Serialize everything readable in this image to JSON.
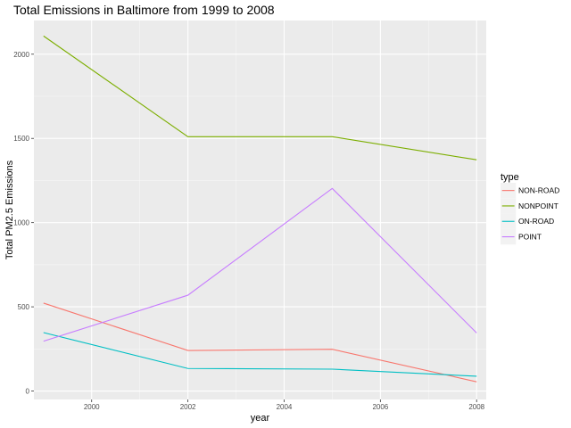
{
  "chart_data": {
    "type": "line",
    "title": "Total Emissions in Baltimore from 1999 to 2008",
    "xlabel": "year",
    "ylabel": "Total PM2.5 Emissions",
    "xlim": [
      1998.8,
      2008.2
    ],
    "ylim": [
      -50,
      2200
    ],
    "x_ticks": [
      2000,
      2002,
      2004,
      2006,
      2008
    ],
    "y_ticks": [
      0,
      500,
      1000,
      1500,
      2000
    ],
    "x_tick_labels": [
      "2000",
      "2002",
      "2004",
      "2006",
      "2008"
    ],
    "y_tick_labels": [
      "0",
      "500",
      "1000",
      "1500",
      "2000"
    ],
    "x": [
      1999,
      2002,
      2005,
      2008
    ],
    "grid": true,
    "legend_position": "right",
    "legend_title": "type",
    "series": [
      {
        "name": "NON-ROAD",
        "color": "#F8766D",
        "values": [
          522,
          241,
          248,
          55
        ]
      },
      {
        "name": "NONPOINT",
        "color": "#7CAE00",
        "values": [
          2108,
          1510,
          1510,
          1373
        ]
      },
      {
        "name": "ON-ROAD",
        "color": "#00BFC4",
        "values": [
          347,
          134,
          130,
          88
        ]
      },
      {
        "name": "POINT",
        "color": "#C77CFF",
        "values": [
          296,
          569,
          1203,
          345
        ]
      }
    ]
  }
}
